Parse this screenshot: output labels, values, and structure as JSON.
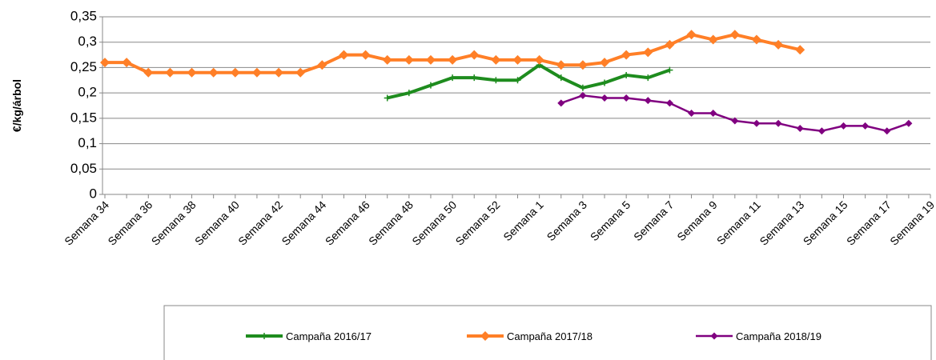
{
  "chart_data": {
    "type": "line",
    "y_label": "€/kg/árbol",
    "categories": [
      "Semana 34",
      null,
      "Semana 36",
      null,
      "Semana 38",
      null,
      "Semana 40",
      null,
      "Semana 42",
      null,
      "Semana 44",
      null,
      "Semana 46",
      null,
      "Semana 48",
      null,
      "Semana 50",
      null,
      "Semana 52",
      null,
      "Semana 1",
      null,
      "Semana 3",
      null,
      "Semana 5",
      null,
      "Semana 7",
      null,
      "Semana 9",
      null,
      "Semana 11",
      null,
      "Semana 13",
      null,
      "Semana 15",
      null,
      "Semana 17",
      null,
      "Semana 19"
    ],
    "ylim": [
      0,
      0.35
    ],
    "yticks": [
      0,
      {
        "value": 0.05,
        "label": "0,05"
      },
      {
        "value": 0.1,
        "label": "0,1"
      },
      {
        "value": 0.15,
        "label": "0,15"
      },
      {
        "value": 0.2,
        "label": "0,2"
      },
      {
        "value": 0.25,
        "label": "0,25"
      },
      {
        "value": 0.3,
        "label": "0,3"
      },
      {
        "value": 0.35,
        "label": "0,35"
      }
    ],
    "grid": true,
    "legend": "bottom",
    "series": [
      {
        "name": "Campaña 2016/17",
        "color": "#1e8c1e",
        "marker": "plus",
        "values": [
          null,
          null,
          null,
          null,
          null,
          null,
          null,
          null,
          null,
          null,
          null,
          null,
          null,
          0.19,
          0.2,
          0.215,
          0.23,
          0.23,
          0.225,
          0.225,
          0.255,
          0.23,
          0.21,
          0.22,
          0.235,
          0.23,
          0.245,
          null,
          null,
          null,
          null,
          null,
          null,
          null,
          null,
          null,
          null,
          null,
          null
        ]
      },
      {
        "name": "Campaña 2017/18",
        "color": "#ff7f27",
        "marker": "diamond",
        "values": [
          0.26,
          0.26,
          0.24,
          0.24,
          0.24,
          0.24,
          0.24,
          0.24,
          0.24,
          0.24,
          0.255,
          0.275,
          0.275,
          0.265,
          0.265,
          0.265,
          0.265,
          0.275,
          0.265,
          0.265,
          0.265,
          0.255,
          0.255,
          0.26,
          0.275,
          0.28,
          0.295,
          0.315,
          0.305,
          0.315,
          0.305,
          0.295,
          0.285,
          null,
          null,
          null,
          null,
          null,
          null
        ]
      },
      {
        "name": "Campaña 2018/19",
        "color": "#800080",
        "marker": "small-diamond",
        "values": [
          null,
          null,
          null,
          null,
          null,
          null,
          null,
          null,
          null,
          null,
          null,
          null,
          null,
          null,
          null,
          null,
          null,
          null,
          null,
          null,
          null,
          0.18,
          0.195,
          0.19,
          0.19,
          0.185,
          0.18,
          0.16,
          0.16,
          0.145,
          0.14,
          0.14,
          0.13,
          0.125,
          0.135,
          0.135,
          0.125,
          0.14,
          null
        ]
      }
    ]
  }
}
